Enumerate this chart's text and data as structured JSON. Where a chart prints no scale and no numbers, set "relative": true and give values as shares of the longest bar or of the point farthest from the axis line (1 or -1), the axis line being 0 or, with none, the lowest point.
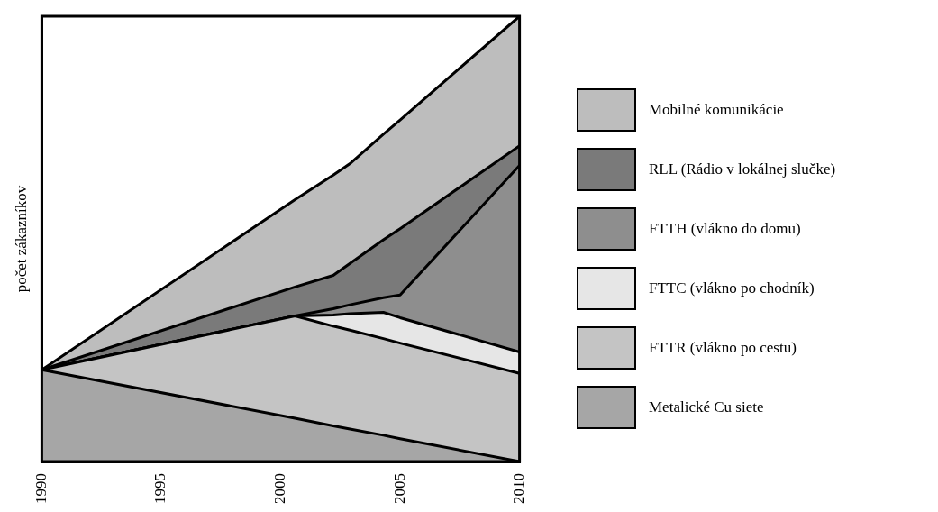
{
  "chart_data": {
    "type": "area",
    "stacked": true,
    "relative": true,
    "ylabel": "počet zákazníkov",
    "x": [
      1990,
      2000.6,
      2002.2,
      2002.9,
      2004.3,
      2005,
      2010
    ],
    "xlim": [
      1990,
      2010
    ],
    "xticks": [
      1990,
      1995,
      2000,
      2005,
      2010
    ],
    "legend": "right",
    "grid": false,
    "series": [
      {
        "name": "Metalické Cu siete",
        "color": "#a6a6a6",
        "values": [
          0.206,
          0.097,
          0.08,
          0.073,
          0.059,
          0.051,
          0
        ]
      },
      {
        "name": "FTTR (vlákno po cestu)",
        "color": "#c4c4c4",
        "values": [
          0,
          0.23,
          0.224,
          0.222,
          0.217,
          0.215,
          0.198
        ]
      },
      {
        "name": "FTTC (vlákno po chodník)",
        "color": "#e6e6e6",
        "values": [
          0,
          0,
          0.025,
          0.037,
          0.059,
          0.057,
          0.048
        ]
      },
      {
        "name": "FTTH (vlákno do domu)",
        "color": "#8e8e8e",
        "values": [
          0,
          0,
          0.014,
          0.02,
          0.033,
          0.051,
          0.419
        ]
      },
      {
        "name": "RLL (Rádio v lokálnej slučke)",
        "color": "#7a7a7a",
        "values": [
          0,
          0.065,
          0.075,
          0.093,
          0.13,
          0.149,
          0.044
        ]
      },
      {
        "name": "Mobilné komunikácie",
        "color": "#bdbdbd",
        "values": [
          0,
          0.196,
          0.225,
          0.224,
          0.237,
          0.244,
          0.291
        ]
      }
    ]
  }
}
